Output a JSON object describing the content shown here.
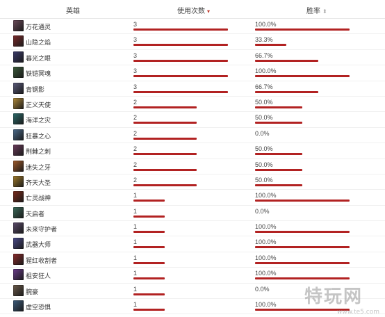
{
  "header": {
    "hero_col": "英雄",
    "uses_col": "使用次数",
    "uses_sort_icon": "▾",
    "winrate_col": "胜率",
    "winrate_sort_icon": "⬍"
  },
  "colors": {
    "bar": "#b22222",
    "sort_active": "#c0392b"
  },
  "max_uses": 3,
  "rows": [
    {
      "hero": "万花通灵",
      "uses": 3,
      "winrate_label": "100.0%",
      "winrate": 1.0,
      "avatar_color": "#6b4a5a"
    },
    {
      "hero": "山隐之焰",
      "uses": 3,
      "winrate_label": "33.3%",
      "winrate": 0.333,
      "avatar_color": "#7a2a2a"
    },
    {
      "hero": "暮光之眼",
      "uses": 3,
      "winrate_label": "66.7%",
      "winrate": 0.667,
      "avatar_color": "#3a3a6a"
    },
    {
      "hero": "铁铠冥魂",
      "uses": 3,
      "winrate_label": "100.0%",
      "winrate": 1.0,
      "avatar_color": "#3a5a3a"
    },
    {
      "hero": "青钢影",
      "uses": 3,
      "winrate_label": "66.7%",
      "winrate": 0.667,
      "avatar_color": "#5a5a7a"
    },
    {
      "hero": "正义天使",
      "uses": 2,
      "winrate_label": "50.0%",
      "winrate": 0.5,
      "avatar_color": "#b08a3a"
    },
    {
      "hero": "海洋之灾",
      "uses": 2,
      "winrate_label": "50.0%",
      "winrate": 0.5,
      "avatar_color": "#2a6a6a"
    },
    {
      "hero": "狂暴之心",
      "uses": 2,
      "winrate_label": "0.0%",
      "winrate": 0.0,
      "avatar_color": "#4a6a8a"
    },
    {
      "hero": "荆棘之刺",
      "uses": 2,
      "winrate_label": "50.0%",
      "winrate": 0.5,
      "avatar_color": "#6a3a5a"
    },
    {
      "hero": "迷失之牙",
      "uses": 2,
      "winrate_label": "50.0%",
      "winrate": 0.5,
      "avatar_color": "#a05a2a"
    },
    {
      "hero": "齐天大圣",
      "uses": 2,
      "winrate_label": "50.0%",
      "winrate": 0.5,
      "avatar_color": "#a07a2a"
    },
    {
      "hero": "亡灵战神",
      "uses": 1,
      "winrate_label": "100.0%",
      "winrate": 1.0,
      "avatar_color": "#7a2a1a"
    },
    {
      "hero": "天启者",
      "uses": 1,
      "winrate_label": "0.0%",
      "winrate": 0.0,
      "avatar_color": "#3a6a5a"
    },
    {
      "hero": "未来守护者",
      "uses": 1,
      "winrate_label": "100.0%",
      "winrate": 1.0,
      "avatar_color": "#5a4a6a"
    },
    {
      "hero": "武器大师",
      "uses": 1,
      "winrate_label": "100.0%",
      "winrate": 1.0,
      "avatar_color": "#4a4a8a"
    },
    {
      "hero": "猩红收割者",
      "uses": 1,
      "winrate_label": "100.0%",
      "winrate": 1.0,
      "avatar_color": "#8a2a2a"
    },
    {
      "hero": "祖安狂人",
      "uses": 1,
      "winrate_label": "100.0%",
      "winrate": 1.0,
      "avatar_color": "#6a3a8a"
    },
    {
      "hero": "腕豪",
      "uses": 1,
      "winrate_label": "0.0%",
      "winrate": 0.0,
      "avatar_color": "#6a5a4a"
    },
    {
      "hero": "虚空恐惧",
      "uses": 1,
      "winrate_label": "100.0%",
      "winrate": 1.0,
      "avatar_color": "#3a5a7a"
    }
  ],
  "watermark": {
    "text": "特玩网",
    "sub": "www.te5.com"
  }
}
